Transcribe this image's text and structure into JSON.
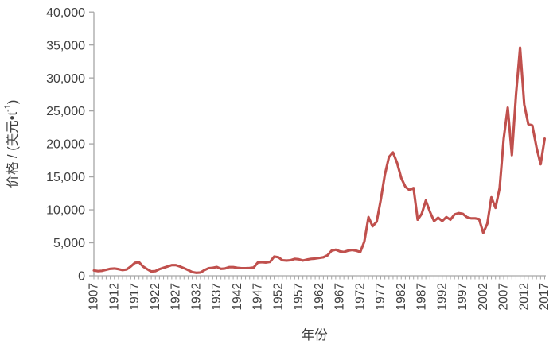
{
  "figure": {
    "xlabel": "年份",
    "ylabel_prefix": "价格 / (美元•t",
    "ylabel_superscript": "-1",
    "ylabel_suffix": ")",
    "line_color": "#C0504D",
    "axis_color": "#A6A6A6",
    "text_color": "#404040"
  },
  "chart_data": {
    "type": "line",
    "title": "",
    "xlabel": "年份",
    "ylabel": "价格 / (美元•t⁻¹)",
    "ylim": [
      0,
      40000
    ],
    "ytick_step": 5000,
    "yticks": [
      0,
      5000,
      10000,
      15000,
      20000,
      25000,
      30000,
      35000,
      40000
    ],
    "xticks": [
      1907,
      1912,
      1917,
      1922,
      1927,
      1932,
      1937,
      1942,
      1947,
      1952,
      1957,
      1962,
      1967,
      1972,
      1977,
      1982,
      1987,
      1992,
      1997,
      2002,
      2007,
      2012,
      2017
    ],
    "grid": false,
    "legend": "none",
    "series": [
      {
        "name": "价格",
        "years": [
          1907,
          1908,
          1909,
          1910,
          1911,
          1912,
          1913,
          1914,
          1915,
          1916,
          1917,
          1918,
          1919,
          1920,
          1921,
          1922,
          1923,
          1924,
          1925,
          1926,
          1927,
          1928,
          1929,
          1930,
          1931,
          1932,
          1933,
          1934,
          1935,
          1936,
          1937,
          1938,
          1939,
          1940,
          1941,
          1942,
          1943,
          1944,
          1945,
          1946,
          1947,
          1948,
          1949,
          1950,
          1951,
          1952,
          1953,
          1954,
          1955,
          1956,
          1957,
          1958,
          1959,
          1960,
          1961,
          1962,
          1963,
          1964,
          1965,
          1966,
          1967,
          1968,
          1969,
          1970,
          1971,
          1972,
          1973,
          1974,
          1975,
          1976,
          1977,
          1978,
          1979,
          1980,
          1981,
          1982,
          1983,
          1984,
          1985,
          1986,
          1987,
          1988,
          1989,
          1990,
          1991,
          1992,
          1993,
          1994,
          1995,
          1996,
          1997,
          1998,
          1999,
          2000,
          2001,
          2002,
          2003,
          2004,
          2005,
          2006,
          2007,
          2008,
          2009,
          2010,
          2011,
          2012,
          2013,
          2014,
          2015,
          2016,
          2017
        ],
        "values": [
          800,
          700,
          750,
          900,
          1050,
          1100,
          1000,
          850,
          950,
          1400,
          1950,
          2050,
          1400,
          1000,
          650,
          700,
          1000,
          1200,
          1400,
          1600,
          1600,
          1400,
          1150,
          850,
          550,
          450,
          500,
          850,
          1150,
          1200,
          1330,
          1050,
          1100,
          1300,
          1300,
          1200,
          1150,
          1150,
          1170,
          1250,
          2000,
          2050,
          2000,
          2100,
          2900,
          2800,
          2350,
          2300,
          2350,
          2550,
          2500,
          2300,
          2450,
          2550,
          2600,
          2700,
          2800,
          3100,
          3800,
          3950,
          3700,
          3600,
          3800,
          3900,
          3800,
          3600,
          5200,
          8900,
          7500,
          8200,
          11500,
          15300,
          18000,
          18700,
          17100,
          14800,
          13500,
          13000,
          13300,
          8500,
          9400,
          11400,
          9700,
          8300,
          8800,
          8300,
          8900,
          8500,
          9300,
          9500,
          9400,
          8900,
          8700,
          8700,
          8600,
          6500,
          7900,
          11900,
          10300,
          13300,
          20800,
          25500,
          18300,
          27500,
          34600,
          26000,
          23000,
          22800,
          19500,
          16900,
          20800
        ]
      }
    ]
  }
}
